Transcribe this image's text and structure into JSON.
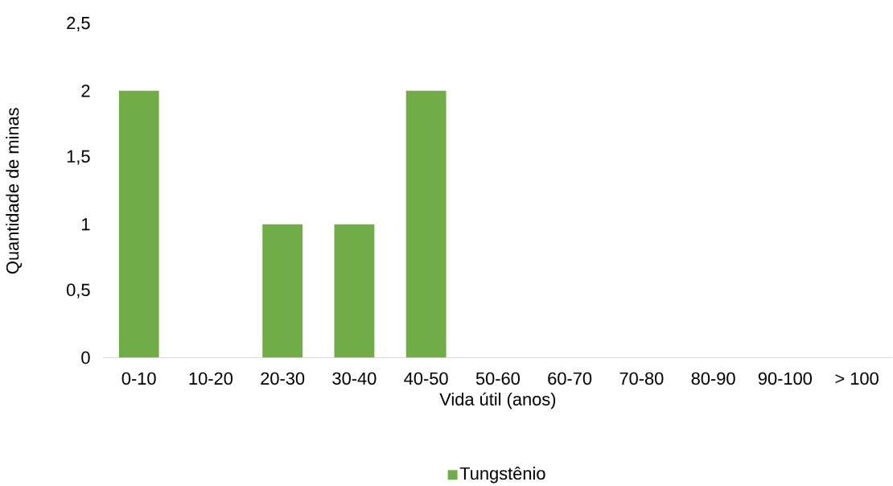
{
  "chart_data": {
    "type": "bar",
    "xlabel": "Vida útil (anos)",
    "ylabel": "Quantidade de minas",
    "categories": [
      "0-10",
      "10-20",
      "20-30",
      "30-40",
      "40-50",
      "50-60",
      "60-70",
      "70-80",
      "80-90",
      "90-100",
      "> 100"
    ],
    "series": [
      {
        "name": "Tungstênio",
        "color": "#70ad47",
        "values": [
          2,
          0,
          1,
          1,
          2,
          0,
          0,
          0,
          0,
          0,
          0
        ]
      }
    ],
    "ylim": [
      0,
      2.5
    ],
    "yticks": [
      0,
      {
        "value": 0.5,
        "label": "0,5"
      },
      1,
      {
        "value": 1.5,
        "label": "1,5"
      },
      2,
      {
        "value": 2.5,
        "label": "2,5"
      }
    ],
    "grid": false,
    "legend": "bottom"
  }
}
